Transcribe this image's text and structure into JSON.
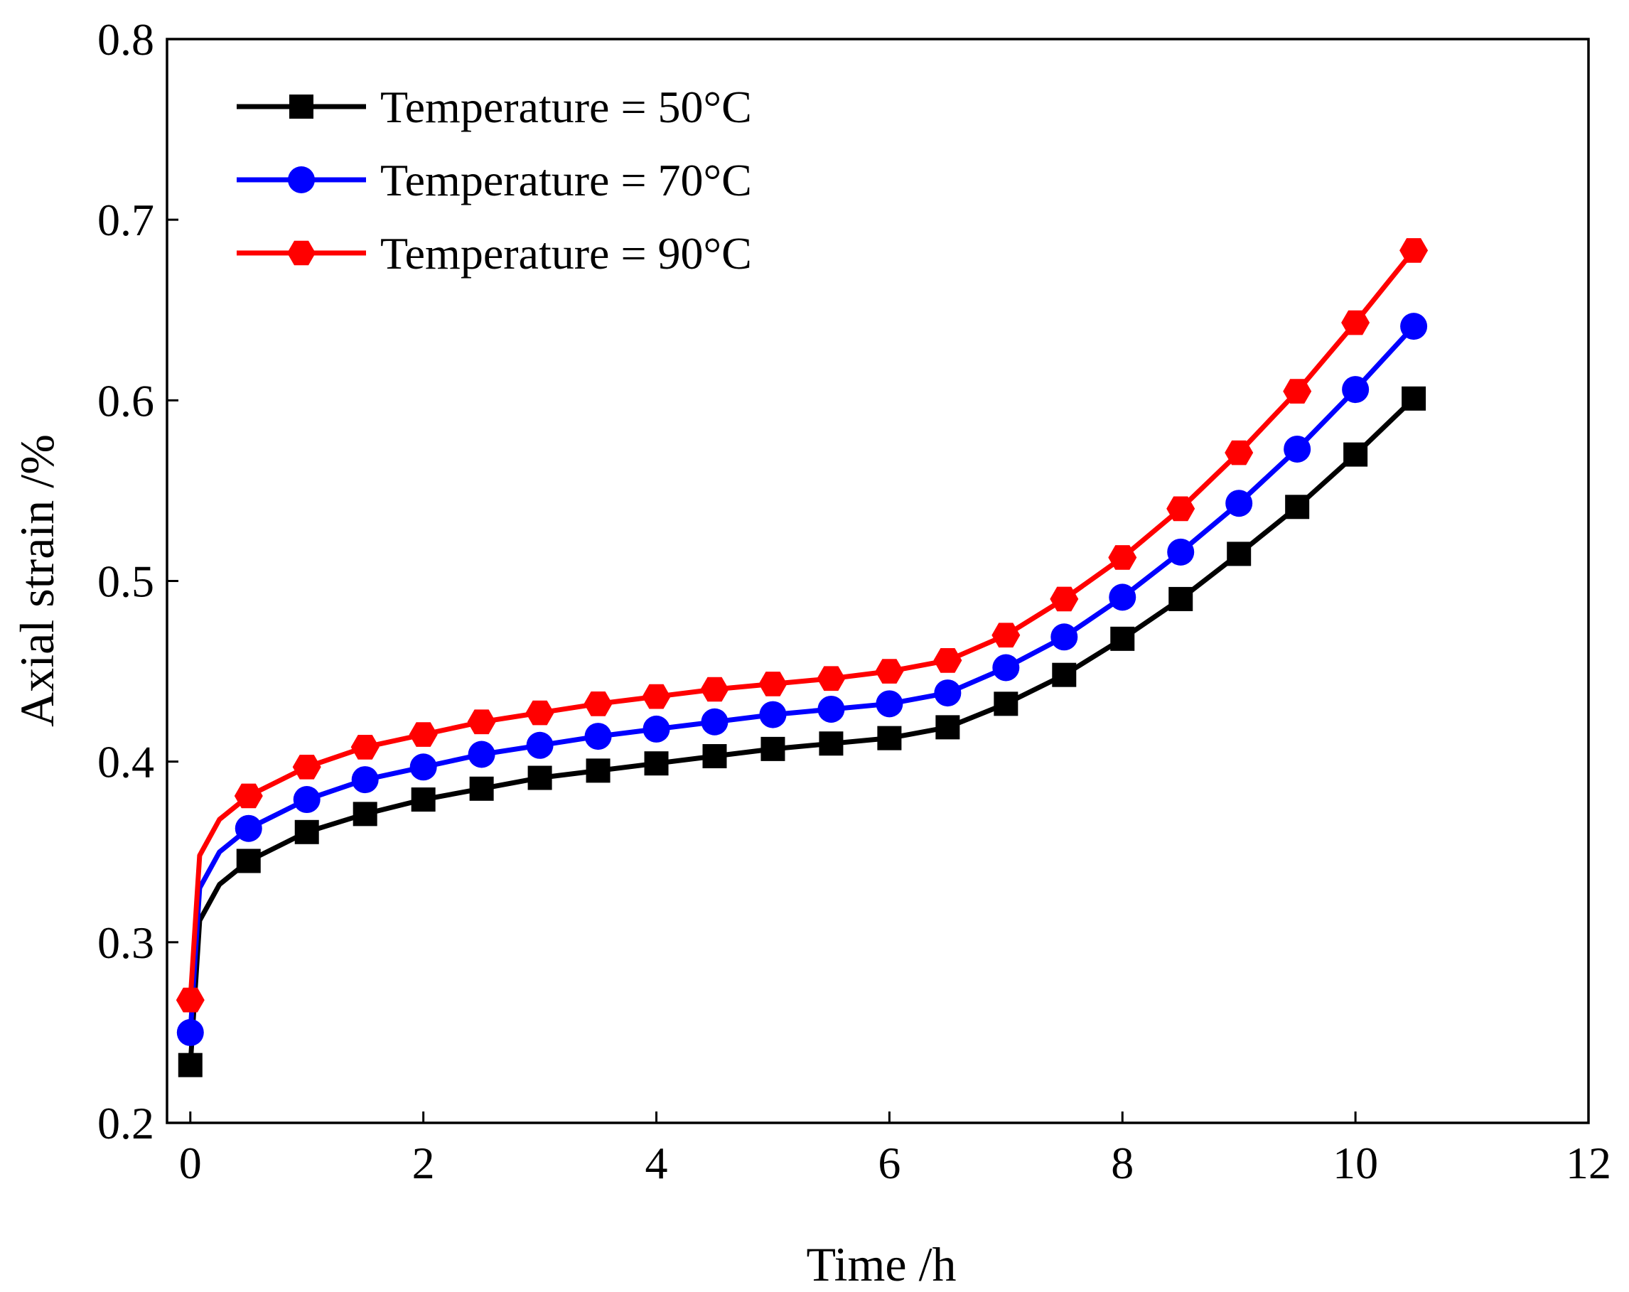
{
  "chart_data": {
    "type": "line",
    "title": "",
    "xlabel": "Time /h",
    "ylabel": "Axial strain /%",
    "xlim": [
      -0.2,
      12
    ],
    "ylim": [
      0.2,
      0.8
    ],
    "xticks": [
      0,
      2,
      4,
      6,
      8,
      10,
      12
    ],
    "yticks": [
      0.2,
      0.3,
      0.4,
      0.5,
      0.6,
      0.7,
      0.8
    ],
    "xtick_labels": [
      "0",
      "2",
      "4",
      "6",
      "8",
      "10",
      "12"
    ],
    "ytick_labels": [
      "0.2",
      "0.3",
      "0.4",
      "0.5",
      "0.6",
      "0.7",
      "0.8"
    ],
    "grid": false,
    "legend_position": "top-left",
    "x": [
      0,
      0.5,
      1,
      1.5,
      2,
      2.5,
      3,
      3.5,
      4,
      4.5,
      5,
      5.5,
      6,
      6.5,
      7,
      7.5,
      8,
      8.5,
      9,
      9.5,
      10,
      10.5
    ],
    "series": [
      {
        "name": "Temperature = 50°C",
        "color": "#000000",
        "marker": "square",
        "values": [
          0.232,
          0.345,
          0.361,
          0.371,
          0.379,
          0.385,
          0.391,
          0.395,
          0.399,
          0.403,
          0.407,
          0.41,
          0.413,
          0.419,
          0.432,
          0.448,
          0.468,
          0.49,
          0.515,
          0.541,
          0.57,
          0.601
        ]
      },
      {
        "name": "Temperature = 70°C",
        "color": "#0000ff",
        "marker": "circle",
        "values": [
          0.25,
          0.363,
          0.379,
          0.39,
          0.397,
          0.404,
          0.409,
          0.414,
          0.418,
          0.422,
          0.426,
          0.429,
          0.432,
          0.438,
          0.452,
          0.469,
          0.491,
          0.516,
          0.543,
          0.573,
          0.606,
          0.641
        ]
      },
      {
        "name": "Temperature = 90°C",
        "color": "#ff0000",
        "marker": "hexagon",
        "values": [
          0.268,
          0.381,
          0.397,
          0.408,
          0.415,
          0.422,
          0.427,
          0.432,
          0.436,
          0.44,
          0.443,
          0.446,
          0.45,
          0.456,
          0.47,
          0.49,
          0.513,
          0.54,
          0.571,
          0.605,
          0.643,
          0.683
        ]
      }
    ]
  }
}
